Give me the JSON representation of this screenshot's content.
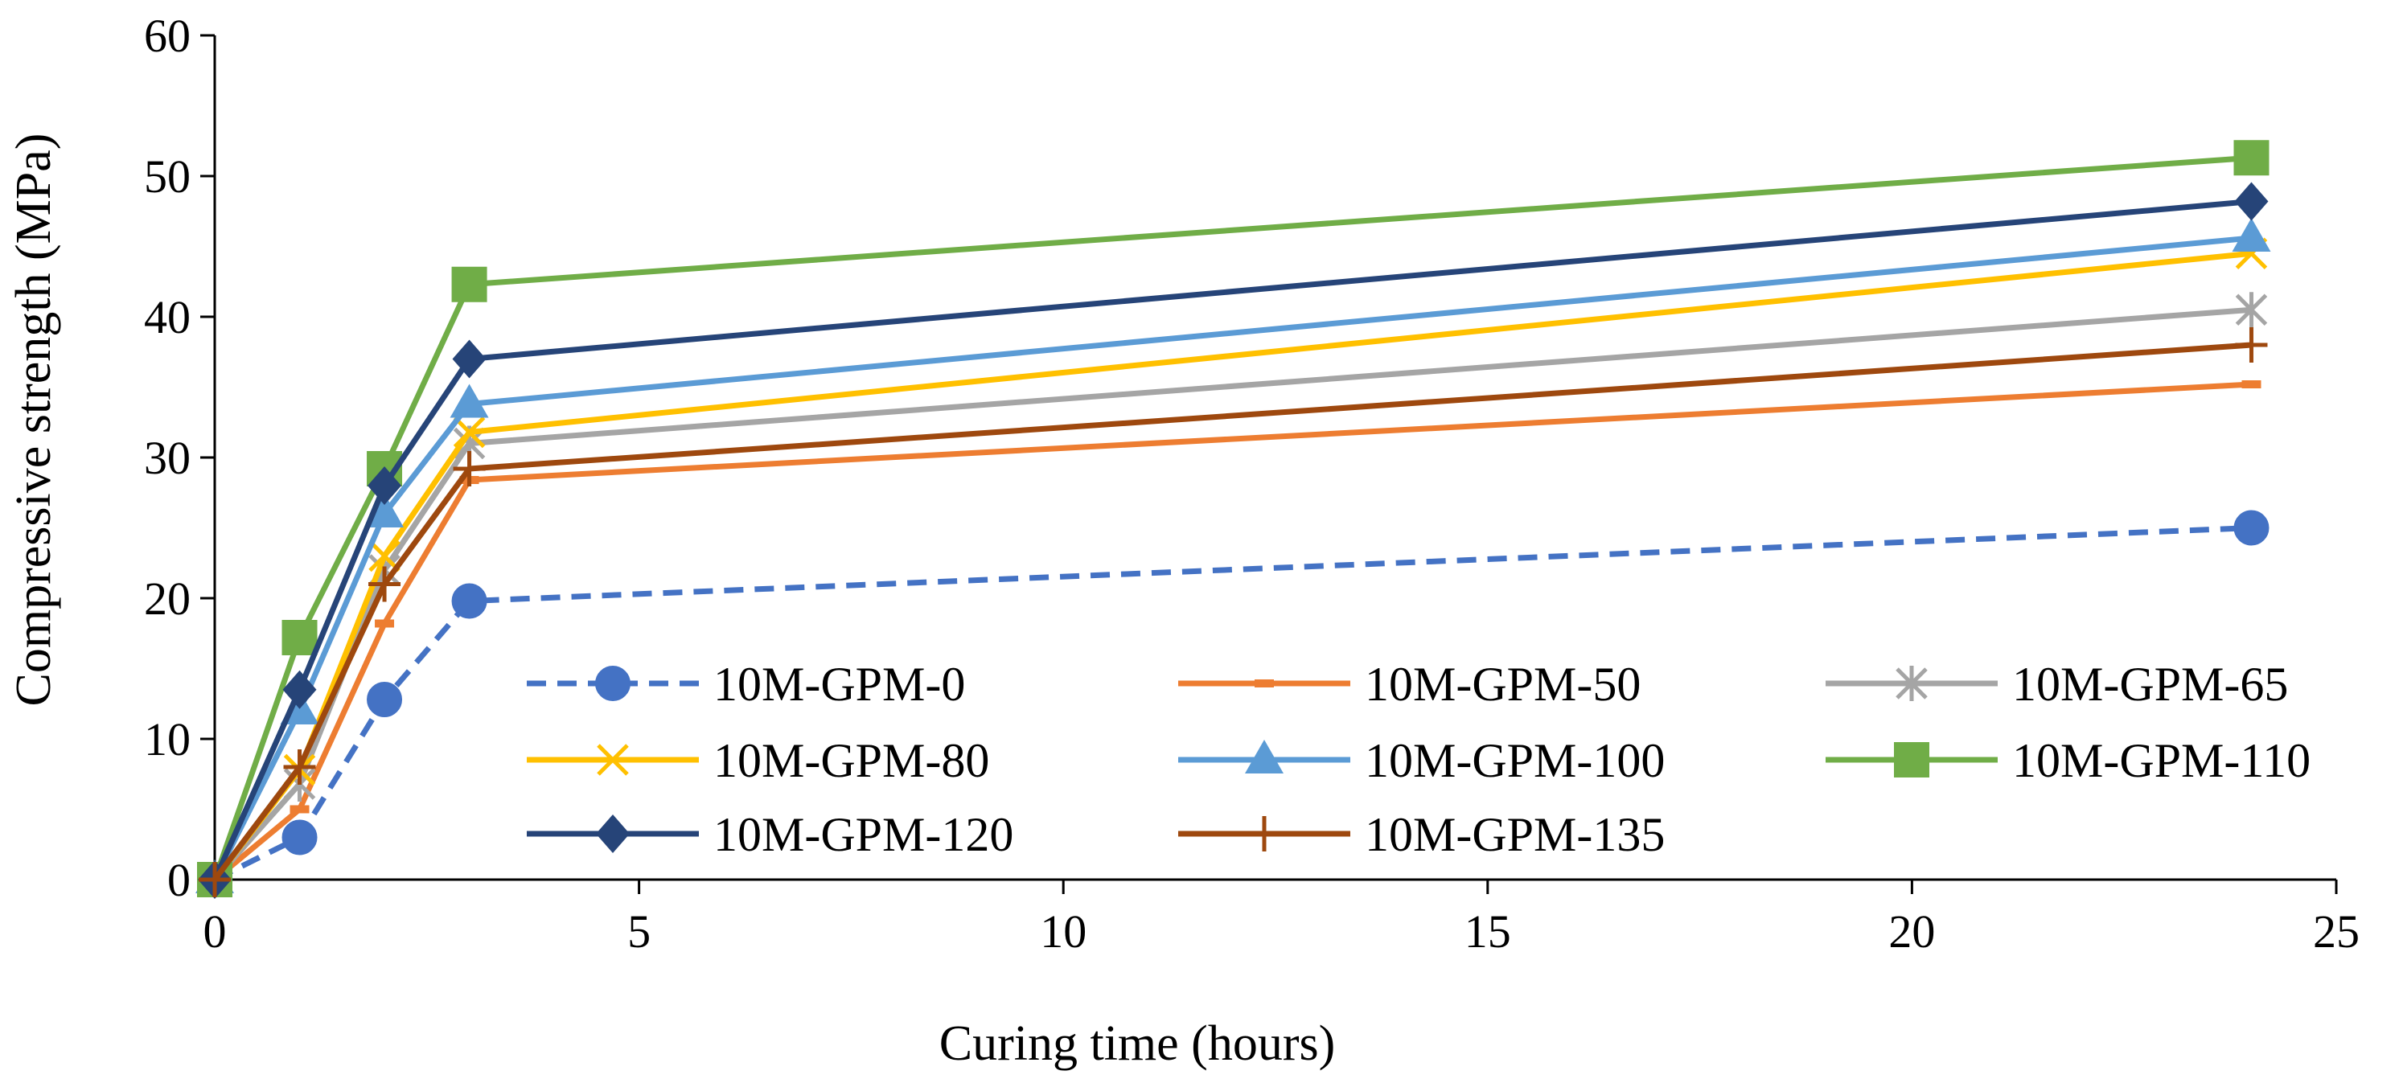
{
  "chart_data": {
    "type": "line",
    "title": "",
    "xlabel": "Curing time (hours)",
    "ylabel": "Compressive strength (MPa)",
    "xlim": [
      0,
      25
    ],
    "ylim": [
      0,
      60
    ],
    "xticks": [
      0,
      5,
      10,
      15,
      20,
      25
    ],
    "yticks": [
      0,
      10,
      20,
      30,
      40,
      50,
      60
    ],
    "x": [
      0,
      1,
      2,
      3,
      24
    ],
    "grid": false,
    "legend_position": "lower-right-inside",
    "series": [
      {
        "name": "10M-GPM-0",
        "values": [
          0,
          3.0,
          12.8,
          19.8,
          25.0
        ],
        "color": "#4472C4",
        "marker": "circle",
        "dash": true
      },
      {
        "name": "10M-GPM-50",
        "values": [
          0,
          5.0,
          18.2,
          28.4,
          35.2
        ],
        "color": "#ED7D31",
        "marker": "dash",
        "dash": false
      },
      {
        "name": "10M-GPM-65",
        "values": [
          0,
          6.8,
          22.0,
          31.0,
          40.5
        ],
        "color": "#A5A5A5",
        "marker": "asterisk",
        "dash": false
      },
      {
        "name": "10M-GPM-80",
        "values": [
          0,
          7.8,
          23.0,
          31.8,
          44.5
        ],
        "color": "#FFC000",
        "marker": "x",
        "dash": false
      },
      {
        "name": "10M-GPM-100",
        "values": [
          0,
          12.0,
          26.0,
          33.8,
          45.6
        ],
        "color": "#5B9BD5",
        "marker": "triangle",
        "dash": false
      },
      {
        "name": "10M-GPM-110",
        "values": [
          0,
          17.2,
          29.2,
          42.3,
          51.3
        ],
        "color": "#70AD47",
        "marker": "square",
        "dash": false
      },
      {
        "name": "10M-GPM-120",
        "values": [
          0,
          13.5,
          28.0,
          37.0,
          48.2
        ],
        "color": "#264478",
        "marker": "diamond",
        "dash": false
      },
      {
        "name": "10M-GPM-135",
        "values": [
          0,
          8.0,
          21.0,
          29.2,
          38.0
        ],
        "color": "#9E480E",
        "marker": "plus",
        "dash": false
      }
    ]
  }
}
